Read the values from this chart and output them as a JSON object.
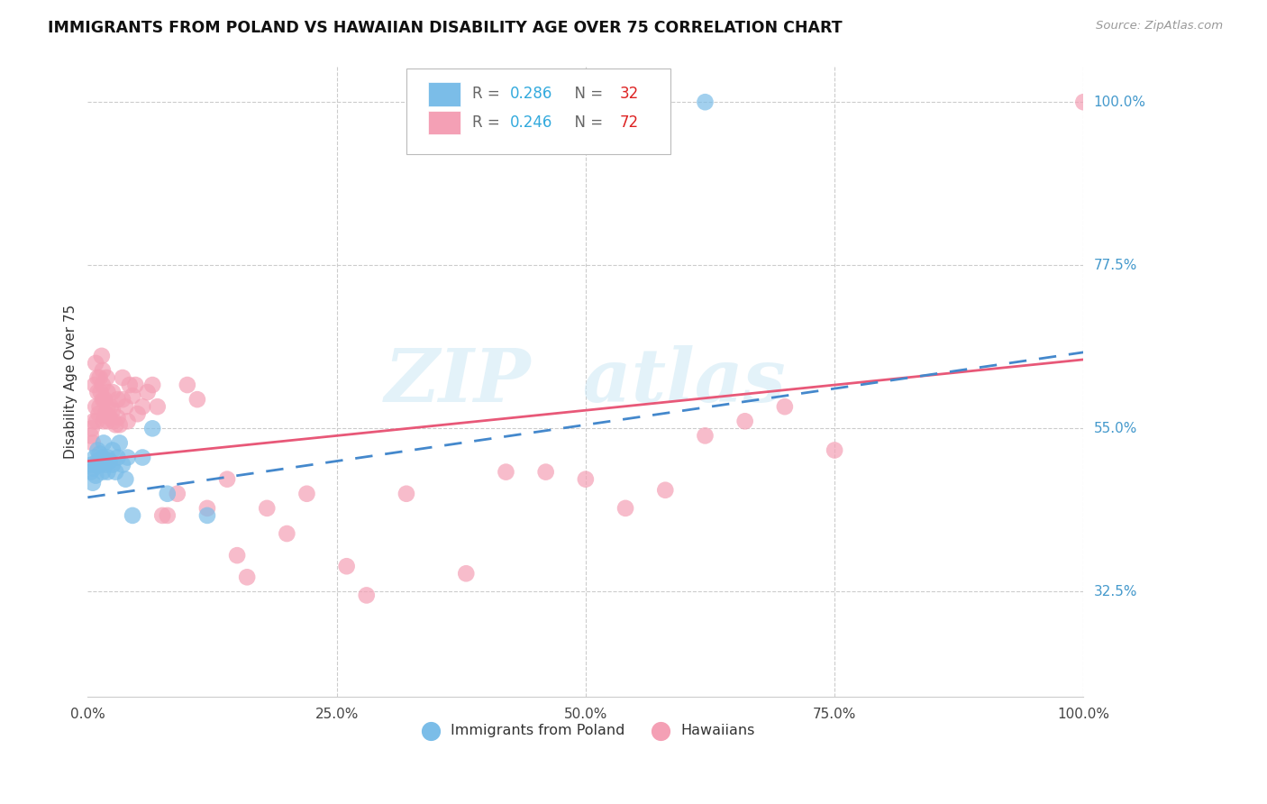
{
  "title": "IMMIGRANTS FROM POLAND VS HAWAIIAN DISABILITY AGE OVER 75 CORRELATION CHART",
  "source": "Source: ZipAtlas.com",
  "ylabel": "Disability Age Over 75",
  "blue_color": "#7bbde8",
  "pink_color": "#f4a0b5",
  "blue_line_color": "#4488cc",
  "pink_line_color": "#e85878",
  "right_label_color": "#4499cc",
  "ytick_vals": [
    1.0,
    0.775,
    0.55,
    0.325
  ],
  "ytick_strs": [
    "100.0%",
    "77.5%",
    "55.0%",
    "32.5%"
  ],
  "xlim": [
    0.0,
    1.0
  ],
  "ylim": [
    0.18,
    1.05
  ],
  "poland_x": [
    0.003,
    0.004,
    0.005,
    0.006,
    0.007,
    0.008,
    0.009,
    0.01,
    0.01,
    0.012,
    0.013,
    0.015,
    0.015,
    0.016,
    0.018,
    0.02,
    0.02,
    0.022,
    0.025,
    0.025,
    0.028,
    0.03,
    0.032,
    0.035,
    0.038,
    0.04,
    0.045,
    0.055,
    0.065,
    0.08,
    0.12,
    0.62
  ],
  "poland_y": [
    0.49,
    0.5,
    0.475,
    0.495,
    0.51,
    0.485,
    0.5,
    0.52,
    0.505,
    0.515,
    0.5,
    0.49,
    0.51,
    0.53,
    0.5,
    0.51,
    0.49,
    0.505,
    0.52,
    0.5,
    0.49,
    0.51,
    0.53,
    0.5,
    0.48,
    0.51,
    0.43,
    0.51,
    0.55,
    0.46,
    0.43,
    1.0
  ],
  "hawaii_x": [
    0.003,
    0.004,
    0.005,
    0.006,
    0.007,
    0.008,
    0.008,
    0.009,
    0.01,
    0.01,
    0.011,
    0.012,
    0.012,
    0.013,
    0.014,
    0.015,
    0.015,
    0.015,
    0.016,
    0.017,
    0.018,
    0.019,
    0.02,
    0.02,
    0.02,
    0.022,
    0.023,
    0.025,
    0.025,
    0.026,
    0.028,
    0.03,
    0.03,
    0.032,
    0.035,
    0.035,
    0.038,
    0.04,
    0.042,
    0.045,
    0.048,
    0.05,
    0.055,
    0.06,
    0.065,
    0.07,
    0.075,
    0.08,
    0.09,
    0.1,
    0.11,
    0.12,
    0.14,
    0.15,
    0.16,
    0.18,
    0.2,
    0.22,
    0.26,
    0.28,
    0.32,
    0.38,
    0.42,
    0.46,
    0.5,
    0.54,
    0.58,
    0.62,
    0.66,
    0.7,
    0.75,
    1.0
  ],
  "hawaii_y": [
    0.54,
    0.55,
    0.53,
    0.56,
    0.61,
    0.58,
    0.64,
    0.56,
    0.6,
    0.62,
    0.57,
    0.58,
    0.62,
    0.6,
    0.65,
    0.59,
    0.61,
    0.63,
    0.56,
    0.59,
    0.57,
    0.62,
    0.56,
    0.58,
    0.6,
    0.565,
    0.58,
    0.575,
    0.6,
    0.56,
    0.555,
    0.565,
    0.59,
    0.555,
    0.59,
    0.62,
    0.58,
    0.56,
    0.61,
    0.595,
    0.61,
    0.57,
    0.58,
    0.6,
    0.61,
    0.58,
    0.43,
    0.43,
    0.46,
    0.61,
    0.59,
    0.44,
    0.48,
    0.375,
    0.345,
    0.44,
    0.405,
    0.46,
    0.36,
    0.32,
    0.46,
    0.35,
    0.49,
    0.49,
    0.48,
    0.44,
    0.465,
    0.54,
    0.56,
    0.58,
    0.52,
    1.0
  ],
  "watermark_text": "ZIP  atlas",
  "legend_r1": "R = 0.286",
  "legend_n1": "N = 32",
  "legend_r2": "R = 0.246",
  "legend_n2": "N = 72",
  "bottom_label1": "Immigrants from Poland",
  "bottom_label2": "Hawaiians"
}
